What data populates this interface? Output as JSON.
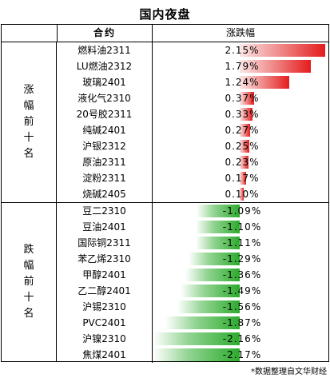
{
  "title": "国内夜盘",
  "header": {
    "contract": "合约",
    "change": "涨跌幅"
  },
  "top": {
    "label": [
      "涨",
      "幅",
      "前",
      "十",
      "名"
    ],
    "rows": [
      {
        "name": "燃料油2311",
        "value": "2.15%",
        "pct": 2.15
      },
      {
        "name": "LU燃油2312",
        "value": "1.79%",
        "pct": 1.79
      },
      {
        "name": "玻璃2401",
        "value": "1.24%",
        "pct": 1.24
      },
      {
        "name": "液化气2310",
        "value": "0.37%",
        "pct": 0.37
      },
      {
        "name": "20号胶2311",
        "value": "0.33%",
        "pct": 0.33
      },
      {
        "name": "纯碱2401",
        "value": "0.27%",
        "pct": 0.27
      },
      {
        "name": "沪银2312",
        "value": "0.25%",
        "pct": 0.25
      },
      {
        "name": "原油2311",
        "value": "0.23%",
        "pct": 0.23
      },
      {
        "name": "淀粉2311",
        "value": "0.17%",
        "pct": 0.17
      },
      {
        "name": "烧碱2405",
        "value": "0.10%",
        "pct": 0.1
      }
    ]
  },
  "bottom": {
    "label": [
      "跌",
      "幅",
      "前",
      "十",
      "名"
    ],
    "rows": [
      {
        "name": "豆二2310",
        "value": "-1.09%",
        "pct": -1.09
      },
      {
        "name": "豆油2401",
        "value": "-1.10%",
        "pct": -1.1
      },
      {
        "name": "国际铜2311",
        "value": "-1.11%",
        "pct": -1.11
      },
      {
        "name": "苯乙烯2310",
        "value": "-1.29%",
        "pct": -1.29
      },
      {
        "name": "甲醇2401",
        "value": "-1.36%",
        "pct": -1.36
      },
      {
        "name": "乙二醇2401",
        "value": "-1.49%",
        "pct": -1.49
      },
      {
        "name": "沪锡2310",
        "value": "-1.56%",
        "pct": -1.56
      },
      {
        "name": "PVC2401",
        "value": "-1.87%",
        "pct": -1.87
      },
      {
        "name": "沪镍2310",
        "value": "-2.16%",
        "pct": -2.16
      },
      {
        "name": "焦煤2401",
        "value": "-2.17%",
        "pct": -2.17
      }
    ]
  },
  "footer": "*数据整理自文华财经"
}
